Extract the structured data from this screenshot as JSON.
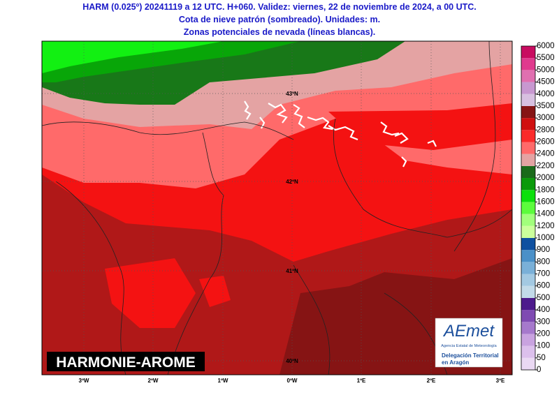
{
  "header": {
    "title_lines": [
      "HARM (0.025º) 20241119 a 12 UTC. H+060. Validez: viernes, 22 de noviembre de 2024, a 00 UTC.",
      "Cota de nieve patrón (sombreado). Unidades: m.",
      "Zonas potenciales de nevada (líneas blancas)."
    ]
  },
  "map": {
    "lat_labels": [
      "43ºN",
      "42ºN",
      "41ºN",
      "40ºN"
    ],
    "lon_labels": [
      "3ºW",
      "2ºW",
      "1ºW",
      "0ºW",
      "1ºE",
      "2ºE",
      "3ºE"
    ],
    "model_label": "HARMONIE-AROME"
  },
  "logo": {
    "mark": "AEmet",
    "agency": "Agencia Estatal de Meteorología",
    "office_lines": [
      "Delegación Territorial",
      "en Aragón"
    ]
  },
  "colorbar": {
    "ticks": [
      0,
      50,
      100,
      200,
      300,
      400,
      500,
      600,
      700,
      800,
      900,
      1000,
      1200,
      1400,
      1600,
      1800,
      2000,
      2200,
      2400,
      2600,
      2800,
      3000,
      3500,
      4000,
      4500,
      5000,
      5500,
      6000
    ],
    "colors": [
      "#ead9f3",
      "#dcc0ec",
      "#c9a3e0",
      "#a679cc",
      "#7f4bb2",
      "#4d1a8c",
      "#c3dbe9",
      "#a3c9e2",
      "#7ab0d8",
      "#4a90c8",
      "#0f50a0",
      "#ccff9c",
      "#a2ff7c",
      "#5cfc3c",
      "#0ce00c",
      "#0a9a0a",
      "#1a6a1a",
      "#e4a3a3",
      "#ff6a6a",
      "#fa2a2a",
      "#d01010",
      "#861414",
      "#d8c0e0",
      "#c898d0",
      "#e070b0",
      "#e03a8e",
      "#c80c60",
      "#900030"
    ]
  }
}
